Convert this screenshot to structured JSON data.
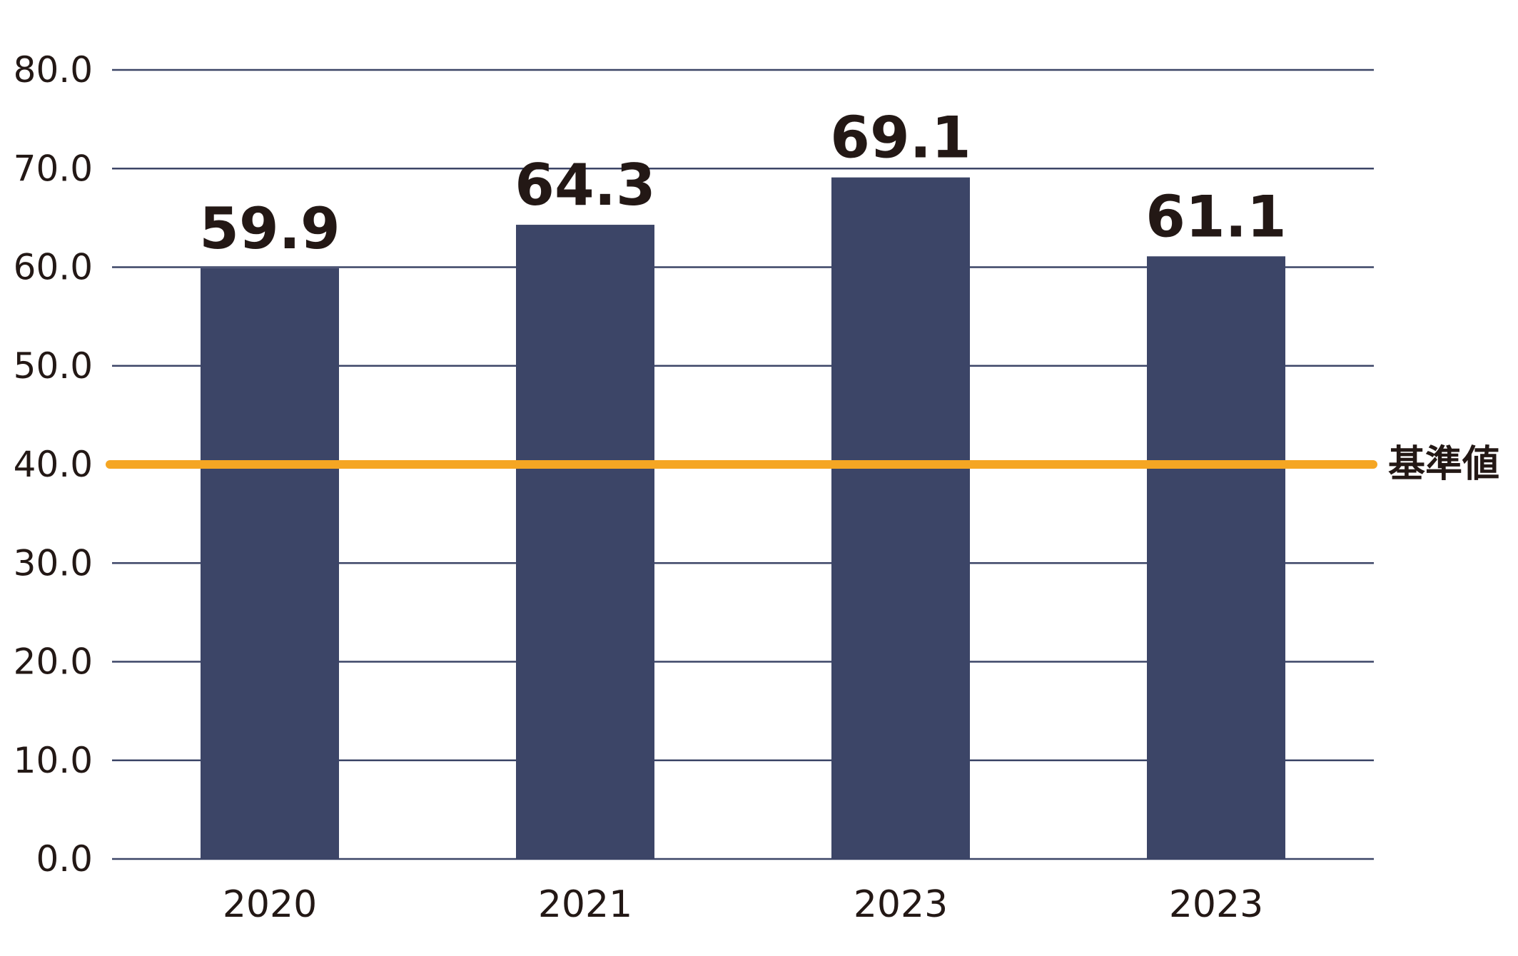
{
  "chart_data": {
    "type": "bar",
    "categories": [
      "2020",
      "2021",
      "2023",
      "2023"
    ],
    "values": [
      59.9,
      64.3,
      69.1,
      61.1
    ],
    "value_labels": [
      "59.9",
      "64.3",
      "69.1",
      "61.1"
    ],
    "ylim": [
      0,
      80
    ],
    "y_ticks": [
      "0.0",
      "10.0",
      "20.0",
      "30.0",
      "40.0",
      "50.0",
      "60.0",
      "70.0",
      "80.0"
    ],
    "grid": true,
    "reference_line": {
      "value": 40,
      "label": "基準値",
      "color": "#F5A623"
    },
    "colors": {
      "bar": "#3C4567",
      "grid": "#3C4567",
      "text": "#231815"
    }
  }
}
